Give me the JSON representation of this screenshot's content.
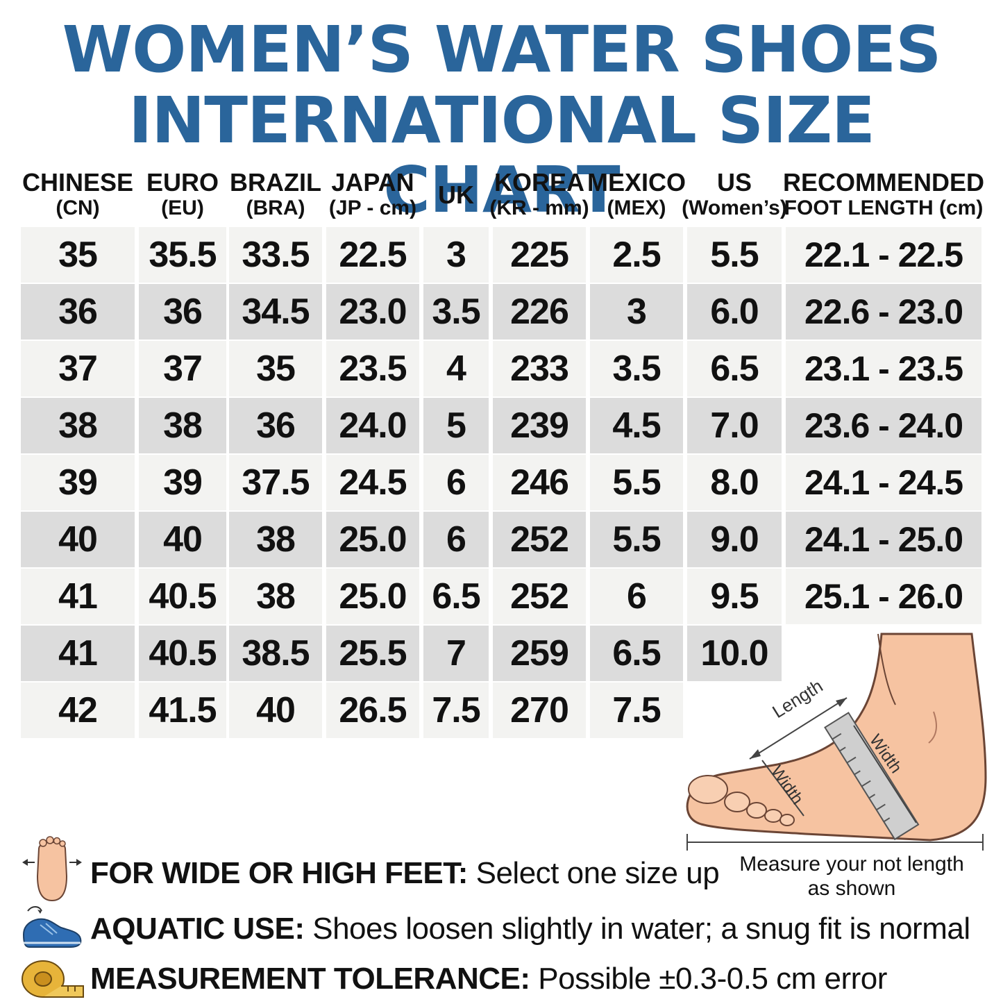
{
  "title": {
    "line1": "WOMEN’S WATER SHOES",
    "line2": "INTERNATIONAL SIZE CHART"
  },
  "headers": [
    {
      "l1": "CHINESE",
      "l2": "(CN)"
    },
    {
      "l1": "EURO",
      "l2": "(EU)"
    },
    {
      "l1": "BRAZIL",
      "l2": "(BRA)"
    },
    {
      "l1": "JAPAN",
      "l2": "(JP - cm)"
    },
    {
      "l1": "UK",
      "l2": ""
    },
    {
      "l1": "KOREA",
      "l2": "(KR - mm)"
    },
    {
      "l1": "MEXICO",
      "l2": "(MEX)"
    },
    {
      "l1": "US",
      "l2": "(Women’s)"
    },
    {
      "l1": "RECOMMENDED",
      "l2": "FOOT LENGTH (cm)"
    }
  ],
  "rows": [
    [
      "35",
      "35.5",
      "33.5",
      "22.5",
      "3",
      "225",
      "2.5",
      "5.5",
      "22.1 - 22.5"
    ],
    [
      "36",
      "36",
      "34.5",
      "23.0",
      "3.5",
      "226",
      "3",
      "6.0",
      "22.6 - 23.0"
    ],
    [
      "37",
      "37",
      "35",
      "23.5",
      "4",
      "233",
      "3.5",
      "6.5",
      "23.1 - 23.5"
    ],
    [
      "38",
      "38",
      "36",
      "24.0",
      "5",
      "239",
      "4.5",
      "7.0",
      "23.6 - 24.0"
    ],
    [
      "39",
      "39",
      "37.5",
      "24.5",
      "6",
      "246",
      "5.5",
      "8.0",
      "24.1 - 24.5"
    ],
    [
      "40",
      "40",
      "38",
      "25.0",
      "6",
      "252",
      "5.5",
      "9.0",
      "24.1 - 25.0"
    ],
    [
      "41",
      "40.5",
      "38",
      "25.0",
      "6.5",
      "252",
      "6",
      "9.5",
      "25.1 - 26.0"
    ],
    [
      "41",
      "40.5",
      "38.5",
      "25.5",
      "7",
      "259",
      "6.5",
      "10.0",
      ""
    ],
    [
      "42",
      "41.5",
      "40",
      "26.5",
      "7.5",
      "270",
      "7.5",
      "",
      ""
    ]
  ],
  "diagram": {
    "length_label": "Length",
    "width_label_1": "Width",
    "width_label_2": "Width",
    "caption_line1": "Measure your not length",
    "caption_line2": "as shown"
  },
  "notes": [
    {
      "icon": "wide-foot-icon",
      "bold": "FOR WIDE OR HIGH FEET:",
      "text": " Select one size up"
    },
    {
      "icon": "water-shoe-icon",
      "bold": "AQUATIC USE:",
      "text": " Shoes loosen slightly in water; a snug fit is normal"
    },
    {
      "icon": "tape-measure-icon",
      "bold": "MEASUREMENT TOLERANCE:",
      "text": " Possible ±0.3-0.5 cm error"
    }
  ]
}
